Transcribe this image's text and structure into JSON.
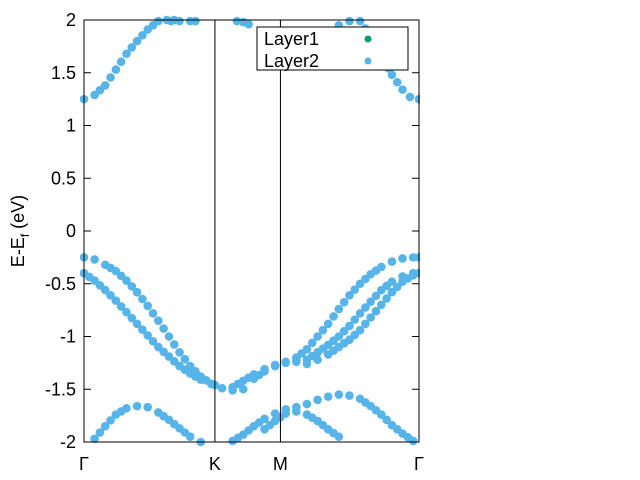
{
  "chart_data": {
    "type": "scatter",
    "ylabel_main": "E-E",
    "ylabel_sub": "f",
    "ylabel_unit": " (eV)",
    "ylim": [
      -2,
      2
    ],
    "xlim": [
      0,
      3.155
    ],
    "yticks": [
      "2",
      "1.5",
      "1",
      "0.5",
      "0",
      "-0.5",
      "-1",
      "-1.5",
      "-2"
    ],
    "ytick_values": [
      2,
      1.5,
      1,
      0.5,
      0,
      -0.5,
      -1,
      -1.5,
      -2
    ],
    "xticks": [
      "Γ",
      "K",
      "M",
      "Γ"
    ],
    "xtick_values": [
      0,
      1.233,
      1.85,
      3.155
    ],
    "grid": false,
    "legend_position": "top-right",
    "colors": {
      "Layer1": "#009e73",
      "Layer2": "#56b4e9",
      "axis": "#000000"
    },
    "series": [
      {
        "name": "Layer1",
        "color": "#009e73",
        "values": []
      },
      {
        "name": "Layer2",
        "color": "#56b4e9",
        "bands": [
          {
            "x": [
              0,
              0.1,
              0.2,
              0.3,
              0.4,
              0.5,
              0.6,
              0.7,
              0.78,
              0.85
            ],
            "y": [
              1.25,
              1.29,
              1.38,
              1.53,
              1.68,
              1.8,
              1.91,
              1.99,
              2.0,
              2.0
            ]
          },
          {
            "x": [
              0.82,
              0.9,
              1.0,
              1.05
            ],
            "y": [
              1.99,
              1.99,
              1.99,
              1.99
            ]
          },
          {
            "x": [
              1.44,
              1.5,
              1.55
            ],
            "y": [
              1.99,
              1.98,
              1.96
            ]
          },
          {
            "x": [
              2.4,
              2.5,
              2.6,
              2.7,
              2.8,
              2.9,
              3.0,
              3.07,
              3.155
            ],
            "y": [
              1.95,
              1.99,
              1.99,
              1.85,
              1.67,
              1.48,
              1.34,
              1.27,
              1.25
            ]
          },
          {
            "x": [
              0,
              0.1,
              0.2,
              0.3,
              0.4,
              0.5,
              0.6,
              0.7,
              0.8,
              0.9,
              1.0,
              1.1,
              1.2,
              1.3,
              1.4,
              1.5
            ],
            "y": [
              -0.25,
              -0.27,
              -0.32,
              -0.38,
              -0.47,
              -0.58,
              -0.71,
              -0.85,
              -1.0,
              -1.15,
              -1.28,
              -1.38,
              -1.45,
              -1.49,
              -1.51,
              -1.5
            ]
          },
          {
            "x": [
              0,
              0.1,
              0.2,
              0.3,
              0.4,
              0.5,
              0.6,
              0.7,
              0.8,
              0.9,
              1.0,
              1.1,
              1.2,
              1.233
            ],
            "y": [
              -0.4,
              -0.47,
              -0.56,
              -0.66,
              -0.77,
              -0.88,
              -0.99,
              -1.1,
              -1.19,
              -1.28,
              -1.35,
              -1.41,
              -1.45,
              -1.46
            ]
          },
          {
            "x": [
              1.4,
              1.5,
              1.6,
              1.7,
              1.8,
              1.9,
              2.0,
              2.1,
              2.2,
              2.3,
              2.4,
              2.5,
              2.6,
              2.7,
              2.8,
              2.9,
              3.0,
              3.1,
              3.155
            ],
            "y": [
              -1.48,
              -1.42,
              -1.36,
              -1.31,
              -1.27,
              -1.24,
              -1.2,
              -1.12,
              -1.0,
              -0.88,
              -0.74,
              -0.61,
              -0.5,
              -0.41,
              -0.34,
              -0.29,
              -0.26,
              -0.25,
              -0.25
            ]
          },
          {
            "x": [
              1.6,
              1.7,
              1.8,
              1.9,
              2.0,
              2.1,
              2.2,
              2.3,
              2.4,
              2.5,
              2.6,
              2.7,
              2.8,
              2.9,
              3.0,
              3.1,
              3.155
            ],
            "y": [
              -1.4,
              -1.33,
              -1.28,
              -1.25,
              -1.23,
              -1.22,
              -1.15,
              -1.08,
              -1.0,
              -0.9,
              -0.78,
              -0.67,
              -0.56,
              -0.48,
              -0.43,
              -0.4,
              -0.4
            ]
          },
          {
            "x": [
              2.0,
              2.1,
              2.2,
              2.3,
              2.4,
              2.5,
              2.6,
              2.7,
              2.8,
              2.9,
              3.0,
              3.1,
              3.155
            ],
            "y": [
              -1.24,
              -1.26,
              -1.22,
              -1.17,
              -1.1,
              -1.03,
              -0.94,
              -0.82,
              -0.7,
              -0.58,
              -0.48,
              -0.42,
              -0.4
            ]
          },
          {
            "x": [
              0.1,
              0.2,
              0.3,
              0.4,
              0.5,
              0.6,
              0.7,
              0.8,
              0.9,
              1.0,
              1.1
            ],
            "y": [
              -1.97,
              -1.85,
              -1.74,
              -1.68,
              -1.66,
              -1.67,
              -1.72,
              -1.79,
              -1.87,
              -1.95,
              -2.0
            ]
          },
          {
            "x": [
              1.4,
              1.5,
              1.6,
              1.7,
              1.8,
              1.9,
              2.0,
              2.1,
              2.2,
              2.3,
              2.4,
              2.5,
              2.6,
              2.7,
              2.8,
              2.9,
              3.0,
              3.1
            ],
            "y": [
              -1.99,
              -1.93,
              -1.85,
              -1.78,
              -1.73,
              -1.69,
              -1.67,
              -1.64,
              -1.6,
              -1.57,
              -1.55,
              -1.56,
              -1.59,
              -1.66,
              -1.74,
              -1.84,
              -1.92,
              -1.99
            ]
          },
          {
            "x": [
              1.7,
              1.8,
              1.9,
              2.0,
              2.1,
              2.2,
              2.3,
              2.4
            ],
            "y": [
              -1.88,
              -1.8,
              -1.73,
              -1.71,
              -1.74,
              -1.8,
              -1.88,
              -1.95
            ]
          }
        ]
      }
    ]
  }
}
